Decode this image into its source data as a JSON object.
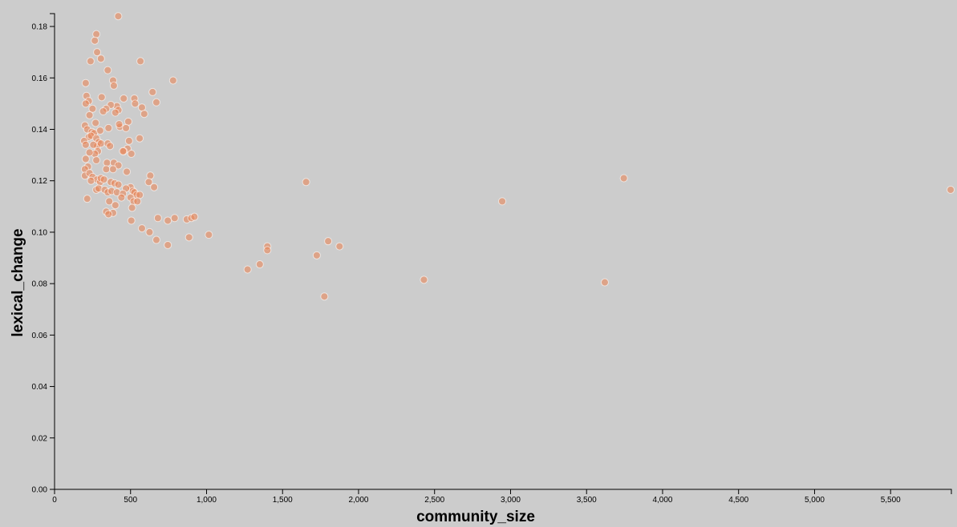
{
  "chart_data": {
    "type": "scatter",
    "xlabel": "community_size",
    "ylabel": "lexical_change",
    "xlim": [
      0,
      5900
    ],
    "ylim": [
      0,
      0.185
    ],
    "x_ticks": [
      0,
      500,
      1000,
      1500,
      2000,
      2500,
      3000,
      3500,
      4000,
      4500,
      5000,
      5500
    ],
    "x_tick_labels": [
      "0",
      "500",
      "1,000",
      "1,500",
      "2,000",
      "2,500",
      "3,000",
      "3,500",
      "4,000",
      "4,500",
      "5,000",
      "5,500"
    ],
    "y_ticks": [
      0,
      0.02,
      0.04,
      0.06,
      0.08,
      0.1,
      0.12,
      0.14,
      0.16,
      0.18
    ],
    "y_tick_labels": [
      "0.00",
      "0.02",
      "0.04",
      "0.06",
      "0.08",
      "0.10",
      "0.12",
      "0.14",
      "0.16",
      "0.18"
    ],
    "grid": false,
    "point_color": "#e8875a",
    "point_opacity": 0.6,
    "points": [
      [
        419,
        0.184
      ],
      [
        275,
        0.177
      ],
      [
        265,
        0.1745
      ],
      [
        280,
        0.17
      ],
      [
        305,
        0.1675
      ],
      [
        237,
        0.1665
      ],
      [
        565,
        0.1665
      ],
      [
        350,
        0.163
      ],
      [
        205,
        0.158
      ],
      [
        385,
        0.159
      ],
      [
        390,
        0.157
      ],
      [
        780,
        0.159
      ],
      [
        645,
        0.1545
      ],
      [
        210,
        0.153
      ],
      [
        225,
        0.151
      ],
      [
        205,
        0.15
      ],
      [
        310,
        0.1525
      ],
      [
        455,
        0.152
      ],
      [
        525,
        0.152
      ],
      [
        670,
        0.1505
      ],
      [
        530,
        0.15
      ],
      [
        410,
        0.149
      ],
      [
        370,
        0.1495
      ],
      [
        340,
        0.148
      ],
      [
        250,
        0.148
      ],
      [
        420,
        0.1475
      ],
      [
        575,
        0.1485
      ],
      [
        320,
        0.147
      ],
      [
        400,
        0.1465
      ],
      [
        590,
        0.146
      ],
      [
        230,
        0.1455
      ],
      [
        270,
        0.1425
      ],
      [
        485,
        0.143
      ],
      [
        200,
        0.1415
      ],
      [
        215,
        0.14
      ],
      [
        245,
        0.139
      ],
      [
        260,
        0.1385
      ],
      [
        355,
        0.1405
      ],
      [
        430,
        0.141
      ],
      [
        470,
        0.1405
      ],
      [
        425,
        0.142
      ],
      [
        300,
        0.1395
      ],
      [
        225,
        0.137
      ],
      [
        195,
        0.1355
      ],
      [
        240,
        0.1375
      ],
      [
        275,
        0.1365
      ],
      [
        290,
        0.135
      ],
      [
        280,
        0.1335
      ],
      [
        305,
        0.1345
      ],
      [
        285,
        0.1315
      ],
      [
        265,
        0.1305
      ],
      [
        255,
        0.134
      ],
      [
        205,
        0.134
      ],
      [
        230,
        0.131
      ],
      [
        350,
        0.1345
      ],
      [
        365,
        0.1335
      ],
      [
        490,
        0.1355
      ],
      [
        560,
        0.1365
      ],
      [
        480,
        0.1325
      ],
      [
        455,
        0.1315
      ],
      [
        450,
        0.1315
      ],
      [
        505,
        0.1305
      ],
      [
        275,
        0.128
      ],
      [
        205,
        0.1285
      ],
      [
        345,
        0.127
      ],
      [
        390,
        0.127
      ],
      [
        420,
        0.126
      ],
      [
        220,
        0.1255
      ],
      [
        200,
        0.1245
      ],
      [
        340,
        0.1245
      ],
      [
        385,
        0.1245
      ],
      [
        475,
        0.1235
      ],
      [
        200,
        0.122
      ],
      [
        230,
        0.123
      ],
      [
        250,
        0.1215
      ],
      [
        280,
        0.1205
      ],
      [
        300,
        0.1195
      ],
      [
        305,
        0.121
      ],
      [
        325,
        0.1205
      ],
      [
        240,
        0.12
      ],
      [
        370,
        0.1195
      ],
      [
        395,
        0.119
      ],
      [
        420,
        0.1185
      ],
      [
        500,
        0.1175
      ],
      [
        515,
        0.116
      ],
      [
        470,
        0.117
      ],
      [
        525,
        0.1155
      ],
      [
        540,
        0.1145
      ],
      [
        560,
        0.1145
      ],
      [
        630,
        0.122
      ],
      [
        620,
        0.1195
      ],
      [
        655,
        0.1175
      ],
      [
        275,
        0.1165
      ],
      [
        290,
        0.117
      ],
      [
        330,
        0.1165
      ],
      [
        350,
        0.1155
      ],
      [
        375,
        0.116
      ],
      [
        410,
        0.1155
      ],
      [
        450,
        0.115
      ],
      [
        440,
        0.1135
      ],
      [
        500,
        0.1135
      ],
      [
        520,
        0.112
      ],
      [
        545,
        0.112
      ],
      [
        360,
        0.112
      ],
      [
        400,
        0.1105
      ],
      [
        510,
        0.1095
      ],
      [
        340,
        0.108
      ],
      [
        385,
        0.1075
      ],
      [
        355,
        0.107
      ],
      [
        215,
        0.113
      ],
      [
        505,
        0.1045
      ],
      [
        680,
        0.1055
      ],
      [
        745,
        0.1045
      ],
      [
        790,
        0.1055
      ],
      [
        870,
        0.105
      ],
      [
        900,
        0.1055
      ],
      [
        920,
        0.106
      ],
      [
        575,
        0.1015
      ],
      [
        625,
        0.1
      ],
      [
        670,
        0.097
      ],
      [
        745,
        0.095
      ],
      [
        885,
        0.098
      ],
      [
        1015,
        0.099
      ],
      [
        1270,
        0.0855
      ],
      [
        1350,
        0.0875
      ],
      [
        1400,
        0.0945
      ],
      [
        1400,
        0.093
      ],
      [
        1655,
        0.1195
      ],
      [
        1725,
        0.091
      ],
      [
        1775,
        0.075
      ],
      [
        1800,
        0.0965
      ],
      [
        1875,
        0.0945
      ],
      [
        2430,
        0.0815
      ],
      [
        2945,
        0.112
      ],
      [
        3620,
        0.0805
      ],
      [
        3745,
        0.121
      ],
      [
        5895,
        0.1165
      ]
    ]
  }
}
